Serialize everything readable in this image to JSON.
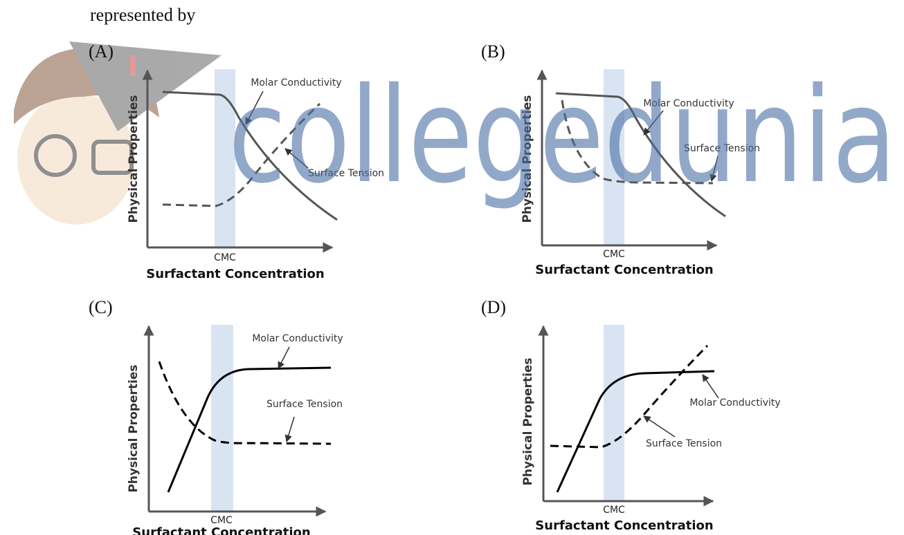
{
  "header": {
    "text": "represented by"
  },
  "watermark": "collegedunia",
  "panels": [
    {
      "label": "(A)",
      "y_label": "Physical Properties",
      "x_label": "Surfactant Concentration",
      "cmc_label": "CMC",
      "molar_label": "Molar Conductivity",
      "surface_label": "Surface Tension"
    },
    {
      "label": "(B)",
      "y_label": "Physical Properties",
      "x_label": "Surfactant Concentration",
      "cmc_label": "CMC",
      "molar_label": "Molar Conductivity",
      "surface_label": "Surface Tension"
    },
    {
      "label": "(C)",
      "y_label": "Physical Properties",
      "x_label": "Surfactant Concentration",
      "cmc_label": "CMC",
      "molar_label": "Molar Conductivity",
      "surface_label": "Surface Tension"
    },
    {
      "label": "(D)",
      "y_label": "Physical Properties",
      "x_label": "Surfactant Concentration",
      "cmc_label": "CMC",
      "molar_label": "Molar Conductivity",
      "surface_label": "Surface Tension"
    }
  ]
}
